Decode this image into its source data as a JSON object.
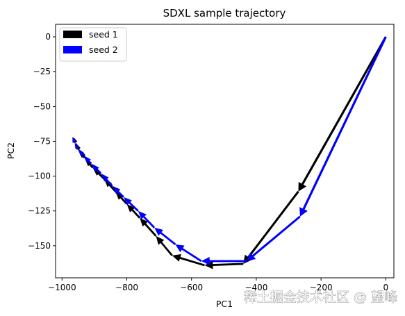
{
  "chart_data": {
    "type": "line",
    "title": "SDXL sample trajectory",
    "xlabel": "PC1",
    "ylabel": "PC2",
    "xlim": [
      -1020,
      25
    ],
    "ylim": [
      -173,
      9
    ],
    "xticks": [
      -1000,
      -800,
      -600,
      -400,
      -200,
      0
    ],
    "xtick_labels": [
      "−1000",
      "−800",
      "−600",
      "−400",
      "−200",
      "0"
    ],
    "yticks": [
      0,
      -25,
      -50,
      -75,
      -100,
      -125,
      -150
    ],
    "ytick_labels": [
      "0",
      "−25",
      "−50",
      "−75",
      "−100",
      "−125",
      "−150"
    ],
    "legend_position": "upper-left",
    "grid": false,
    "series": [
      {
        "name": "seed 1",
        "color": "#000000",
        "x": [
          0,
          -270,
          -440,
          -560,
          -660,
          -710,
          -760,
          -800,
          -835,
          -870,
          -905,
          -930,
          -948,
          -958,
          -965
        ],
        "y": [
          0,
          -111,
          -163,
          -164,
          -157,
          -143,
          -130,
          -120,
          -111,
          -102,
          -94,
          -87,
          -81,
          -76,
          -72
        ]
      },
      {
        "name": "seed 2",
        "color": "#0000ff",
        "x": [
          0,
          -265,
          -430,
          -570,
          -650,
          -715,
          -765,
          -810,
          -845,
          -880,
          -910,
          -935,
          -952,
          -961,
          -968
        ],
        "y": [
          0,
          -129,
          -161,
          -161,
          -149,
          -137,
          -125,
          -115,
          -107,
          -98,
          -91,
          -85,
          -80,
          -76,
          -72
        ]
      }
    ]
  },
  "watermark": "稀土掘金技术社区 @ 望峰"
}
